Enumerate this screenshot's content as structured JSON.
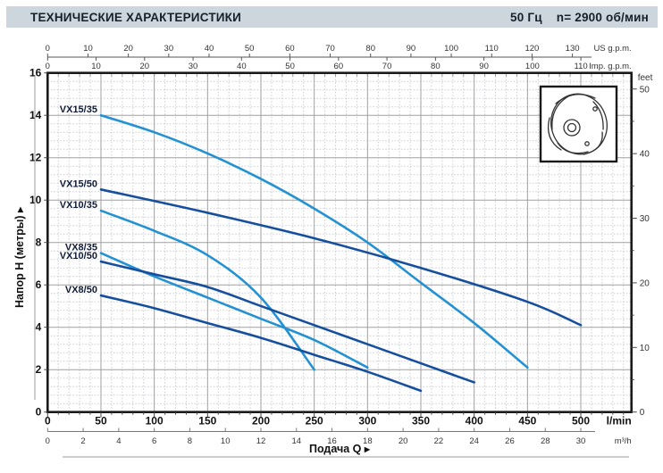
{
  "header": {
    "title": "ТЕХНИЧЕСКИЕ ХАРАКТЕРИСТИКИ",
    "frequency": "50 Гц",
    "speed": "n= 2900  об/мин"
  },
  "colors": {
    "light_curve": "#2492d2",
    "dark_curve": "#174f9f",
    "header_bg": "#cdd6dc",
    "grid_minor": "#c9ccd0",
    "grid_major": "#a0a0a0",
    "frame": "#1a1a1a"
  },
  "chart_data": {
    "type": "line",
    "title": "Pump performance curves H(Q)",
    "x_axis": {
      "name": "Подача Q",
      "unit_primary": "l/min",
      "ticks_lmin": [
        0,
        50,
        100,
        150,
        200,
        250,
        300,
        350,
        400,
        450,
        500
      ],
      "unit_secondary": "m³/h",
      "ticks_m3h": [
        0,
        2,
        4,
        6,
        8,
        10,
        12,
        14,
        16,
        18,
        20,
        22,
        24,
        26,
        28,
        30
      ],
      "xlim_lmin": [
        0,
        547
      ]
    },
    "y_axis": {
      "name": "Напор H (метры)",
      "ticks_m": [
        0,
        2,
        4,
        6,
        8,
        10,
        12,
        14,
        16
      ],
      "unit_right": "feet",
      "ticks_feet": [
        0,
        10,
        20,
        30,
        40,
        50
      ],
      "ylim_m": [
        0,
        16
      ]
    },
    "top_axis": {
      "us_label": "US g.p.m.",
      "us_ticks": [
        0,
        10,
        20,
        30,
        40,
        50,
        60,
        70,
        80,
        90,
        100,
        110,
        120,
        130
      ],
      "imp_label": "Imp. g.p.m.",
      "imp_ticks": [
        0,
        10,
        20,
        30,
        40,
        50,
        60,
        70,
        80,
        90,
        100,
        110
      ]
    },
    "grid": {
      "minor_step_lmin": 10,
      "minor_step_m": 0.4,
      "major_step_lmin": 50,
      "major_step_m": 2
    },
    "legend_position": "labels-at-curve-start",
    "series": [
      {
        "name": "VX15/35",
        "color": "light",
        "points": [
          [
            50,
            14.0
          ],
          [
            100,
            13.2
          ],
          [
            150,
            12.2
          ],
          [
            200,
            11.0
          ],
          [
            250,
            9.6
          ],
          [
            300,
            8.0
          ],
          [
            350,
            6.1
          ],
          [
            400,
            4.2
          ],
          [
            450,
            2.1
          ]
        ]
      },
      {
        "name": "VX15/50",
        "color": "dark",
        "points": [
          [
            50,
            10.5
          ],
          [
            150,
            9.4
          ],
          [
            250,
            8.2
          ],
          [
            350,
            6.8
          ],
          [
            450,
            5.2
          ],
          [
            500,
            4.1
          ]
        ]
      },
      {
        "name": "VX10/35",
        "color": "light",
        "points": [
          [
            50,
            9.5
          ],
          [
            100,
            8.55
          ],
          [
            150,
            7.4
          ],
          [
            200,
            5.4
          ],
          [
            250,
            2.0
          ]
        ]
      },
      {
        "name": "VX8/35",
        "color": "light",
        "points": [
          [
            50,
            7.5
          ],
          [
            100,
            6.4
          ],
          [
            150,
            5.4
          ],
          [
            200,
            4.4
          ],
          [
            250,
            3.4
          ],
          [
            300,
            2.1
          ]
        ]
      },
      {
        "name": "VX10/50",
        "color": "dark",
        "points": [
          [
            50,
            7.1
          ],
          [
            100,
            6.5
          ],
          [
            150,
            5.9
          ],
          [
            200,
            5.0
          ],
          [
            250,
            4.1
          ],
          [
            300,
            3.2
          ],
          [
            350,
            2.3
          ],
          [
            400,
            1.4
          ]
        ]
      },
      {
        "name": "VX8/50",
        "color": "dark",
        "points": [
          [
            50,
            5.5
          ],
          [
            100,
            4.9
          ],
          [
            150,
            4.2
          ],
          [
            200,
            3.5
          ],
          [
            250,
            2.7
          ],
          [
            300,
            1.9
          ],
          [
            350,
            1.0
          ]
        ]
      }
    ]
  }
}
